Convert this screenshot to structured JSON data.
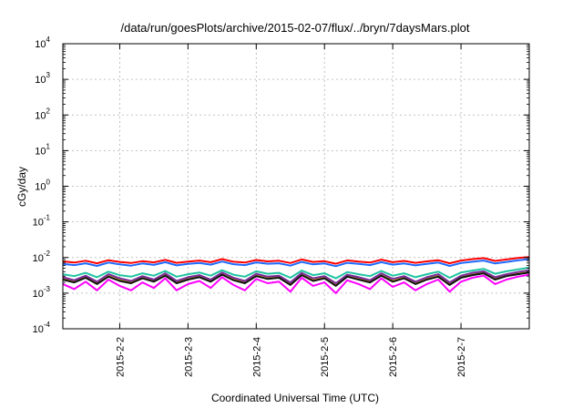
{
  "chart_data": {
    "type": "line",
    "title": "/data/run/goesPlots/archive/2015-02-07/flux/../bryn/7daysMars.plot",
    "xlabel": "Coordinated Universal Time (UTC)",
    "ylabel": "cGy/day",
    "yscale": "log",
    "ylim": [
      0.0001,
      10000
    ],
    "xlim": [
      "2015-02-01T04:00",
      "2015-02-08T00:00"
    ],
    "grid": true,
    "yticks": [
      {
        "base": "10",
        "exp": "4"
      },
      {
        "base": "10",
        "exp": "3"
      },
      {
        "base": "10",
        "exp": "2"
      },
      {
        "base": "10",
        "exp": "1"
      },
      {
        "base": "10",
        "exp": "0"
      },
      {
        "base": "10",
        "exp": "-1"
      },
      {
        "base": "10",
        "exp": "-2"
      },
      {
        "base": "10",
        "exp": "-3"
      },
      {
        "base": "10",
        "exp": "-4"
      }
    ],
    "xticks": [
      "2015-2-2",
      "2015-2-3",
      "2015-2-4",
      "2015-2-5",
      "2015-2-6",
      "2015-2-7"
    ],
    "x": [
      "2015-02-01T04:00",
      "2015-02-01T08:00",
      "2015-02-01T12:00",
      "2015-02-01T16:00",
      "2015-02-01T20:00",
      "2015-02-02T00:00",
      "2015-02-02T04:00",
      "2015-02-02T08:00",
      "2015-02-02T12:00",
      "2015-02-02T16:00",
      "2015-02-02T20:00",
      "2015-02-03T00:00",
      "2015-02-03T04:00",
      "2015-02-03T08:00",
      "2015-02-03T12:00",
      "2015-02-03T16:00",
      "2015-02-03T20:00",
      "2015-02-04T00:00",
      "2015-02-04T04:00",
      "2015-02-04T08:00",
      "2015-02-04T12:00",
      "2015-02-04T16:00",
      "2015-02-04T20:00",
      "2015-02-05T00:00",
      "2015-02-05T04:00",
      "2015-02-05T08:00",
      "2015-02-05T12:00",
      "2015-02-05T16:00",
      "2015-02-05T20:00",
      "2015-02-06T00:00",
      "2015-02-06T04:00",
      "2015-02-06T08:00",
      "2015-02-06T12:00",
      "2015-02-06T16:00",
      "2015-02-06T20:00",
      "2015-02-07T00:00",
      "2015-02-07T04:00",
      "2015-02-07T08:00",
      "2015-02-07T12:00",
      "2015-02-07T16:00",
      "2015-02-07T20:00",
      "2015-02-08T00:00"
    ],
    "series": [
      {
        "color": "#ff0000",
        "values": [
          0.0078,
          0.0072,
          0.0081,
          0.0069,
          0.0084,
          0.0075,
          0.007,
          0.0079,
          0.0073,
          0.0086,
          0.0071,
          0.0077,
          0.0082,
          0.0074,
          0.009,
          0.0076,
          0.0072,
          0.0085,
          0.0078,
          0.0081,
          0.007,
          0.0088,
          0.0075,
          0.0079,
          0.0067,
          0.0083,
          0.0077,
          0.0072,
          0.0087,
          0.0074,
          0.008,
          0.0071,
          0.0078,
          0.0084,
          0.0069,
          0.0082,
          0.009,
          0.0096,
          0.008,
          0.0088,
          0.0097,
          0.0103
        ]
      },
      {
        "color": "#1e6bff",
        "values": [
          0.0066,
          0.0061,
          0.0069,
          0.0058,
          0.0072,
          0.0064,
          0.0059,
          0.0068,
          0.0062,
          0.0074,
          0.006,
          0.0066,
          0.007,
          0.0063,
          0.0077,
          0.0065,
          0.0061,
          0.0073,
          0.0067,
          0.0069,
          0.0059,
          0.0075,
          0.0064,
          0.0068,
          0.0057,
          0.0071,
          0.0066,
          0.0061,
          0.0074,
          0.0063,
          0.0068,
          0.006,
          0.0066,
          0.0072,
          0.0058,
          0.007,
          0.0076,
          0.0082,
          0.0068,
          0.0075,
          0.0083,
          0.009
        ]
      },
      {
        "color": "#20c4a0",
        "values": [
          0.0034,
          0.003,
          0.0037,
          0.0028,
          0.004,
          0.0032,
          0.0029,
          0.0036,
          0.0031,
          0.0042,
          0.0029,
          0.0034,
          0.0038,
          0.0031,
          0.0044,
          0.0033,
          0.0029,
          0.0041,
          0.0035,
          0.0037,
          0.0027,
          0.0043,
          0.0032,
          0.0036,
          0.0026,
          0.0039,
          0.0034,
          0.003,
          0.0042,
          0.0031,
          0.0036,
          0.0028,
          0.0034,
          0.004,
          0.0027,
          0.0038,
          0.0043,
          0.0048,
          0.0035,
          0.0041,
          0.0046,
          0.0052
        ]
      },
      {
        "color": "#c8a800",
        "values": [
          0.0025,
          0.0021,
          0.0028,
          0.0019,
          0.003,
          0.0023,
          0.002,
          0.0027,
          0.0022,
          0.0032,
          0.002,
          0.0025,
          0.0029,
          0.0022,
          0.0034,
          0.0024,
          0.002,
          0.0031,
          0.0026,
          0.0028,
          0.0018,
          0.0033,
          0.0023,
          0.0027,
          0.0017,
          0.003,
          0.0025,
          0.0021,
          0.0032,
          0.0022,
          0.0027,
          0.0019,
          0.0025,
          0.003,
          0.0018,
          0.0028,
          0.0033,
          0.0037,
          0.0025,
          0.0031,
          0.0035,
          0.0039
        ]
      },
      {
        "color": "#7a2a9a",
        "values": [
          0.0028,
          0.0023,
          0.0031,
          0.0021,
          0.0034,
          0.0026,
          0.0022,
          0.003,
          0.0024,
          0.0036,
          0.0022,
          0.0028,
          0.0032,
          0.0024,
          0.0038,
          0.0027,
          0.0022,
          0.0035,
          0.0029,
          0.0031,
          0.002,
          0.0037,
          0.0026,
          0.003,
          0.0019,
          0.0033,
          0.0028,
          0.0023,
          0.0036,
          0.0025,
          0.003,
          0.0021,
          0.0028,
          0.0034,
          0.002,
          0.0031,
          0.0037,
          0.0041,
          0.0028,
          0.0034,
          0.0039,
          0.0044
        ]
      },
      {
        "color": "#111111",
        "values": [
          0.0024,
          0.002,
          0.0027,
          0.0018,
          0.0029,
          0.0022,
          0.0019,
          0.0026,
          0.0021,
          0.0031,
          0.0019,
          0.0024,
          0.0028,
          0.0021,
          0.0033,
          0.0023,
          0.0019,
          0.003,
          0.0025,
          0.0027,
          0.0017,
          0.0032,
          0.0022,
          0.0026,
          0.0016,
          0.0029,
          0.0024,
          0.002,
          0.0031,
          0.0021,
          0.0026,
          0.0018,
          0.0024,
          0.0029,
          0.0017,
          0.0027,
          0.0032,
          0.0036,
          0.0024,
          0.003,
          0.0034,
          0.0038
        ]
      },
      {
        "color": "#ff00ff",
        "values": [
          0.0018,
          0.0013,
          0.0021,
          0.0012,
          0.0024,
          0.0016,
          0.0012,
          0.002,
          0.0014,
          0.0026,
          0.0012,
          0.0018,
          0.0022,
          0.0014,
          0.0028,
          0.0017,
          0.0012,
          0.0025,
          0.0019,
          0.0021,
          0.0011,
          0.0027,
          0.0016,
          0.002,
          0.001,
          0.0023,
          0.0018,
          0.0013,
          0.0026,
          0.0015,
          0.002,
          0.0012,
          0.0018,
          0.0024,
          0.0011,
          0.0021,
          0.0027,
          0.0031,
          0.0018,
          0.0024,
          0.0029,
          0.0033
        ]
      }
    ]
  }
}
